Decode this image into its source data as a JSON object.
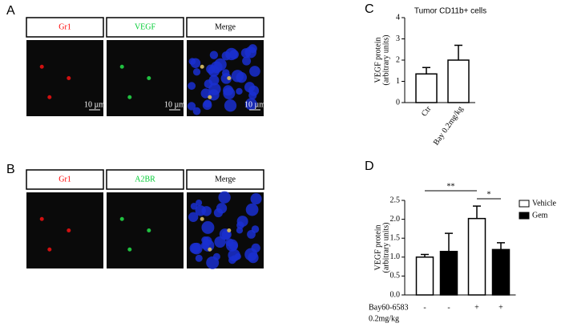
{
  "panels": [
    {
      "letter": "A",
      "labels": [
        "Gr1",
        "VEGF",
        "Merge"
      ],
      "scale_bar": "10 µm"
    },
    {
      "letter": "B",
      "labels": [
        "Gr1",
        "A2BR",
        "Merge"
      ]
    }
  ],
  "chart_data": [
    {
      "type": "bar",
      "letter": "C",
      "title": "Tumor CD11b+ cells",
      "ylabel": [
        "VEGF protein",
        "(arbitrary units)"
      ],
      "categories": [
        "Ctr",
        "Bay 0.2mg/kg"
      ],
      "values": [
        1.35,
        2.0
      ],
      "errors": [
        0.3,
        0.7
      ],
      "color": "#ffffff",
      "ylim": [
        0,
        4
      ],
      "yticks": [
        0,
        1,
        2,
        3,
        4
      ]
    },
    {
      "type": "bar",
      "letter": "D",
      "ylabel": [
        "VEGF protein",
        "(arbitrary units)"
      ],
      "row_label": [
        "Bay60-6583",
        "0.2mg/kg"
      ],
      "categories": [
        "-",
        "-",
        "+",
        "+"
      ],
      "series": [
        {
          "name": "Vehicle",
          "color": "#ffffff",
          "values": [
            1.0,
            null,
            2.02,
            null
          ],
          "errors": [
            0.07,
            null,
            0.33,
            null
          ]
        },
        {
          "name": "Gem",
          "color": "#000000",
          "values": [
            null,
            1.15,
            null,
            1.2
          ],
          "errors": [
            null,
            0.48,
            null,
            0.18
          ]
        }
      ],
      "annotations": [
        "**",
        "*"
      ],
      "ylim": [
        0,
        2.5
      ],
      "yticks": [
        {
          "value": 0,
          "label": "0.0"
        },
        0.5,
        {
          "value": 1,
          "label": "1.0"
        },
        1.5,
        {
          "value": 2,
          "label": "2.0"
        },
        2.5
      ],
      "legend": "right"
    }
  ]
}
